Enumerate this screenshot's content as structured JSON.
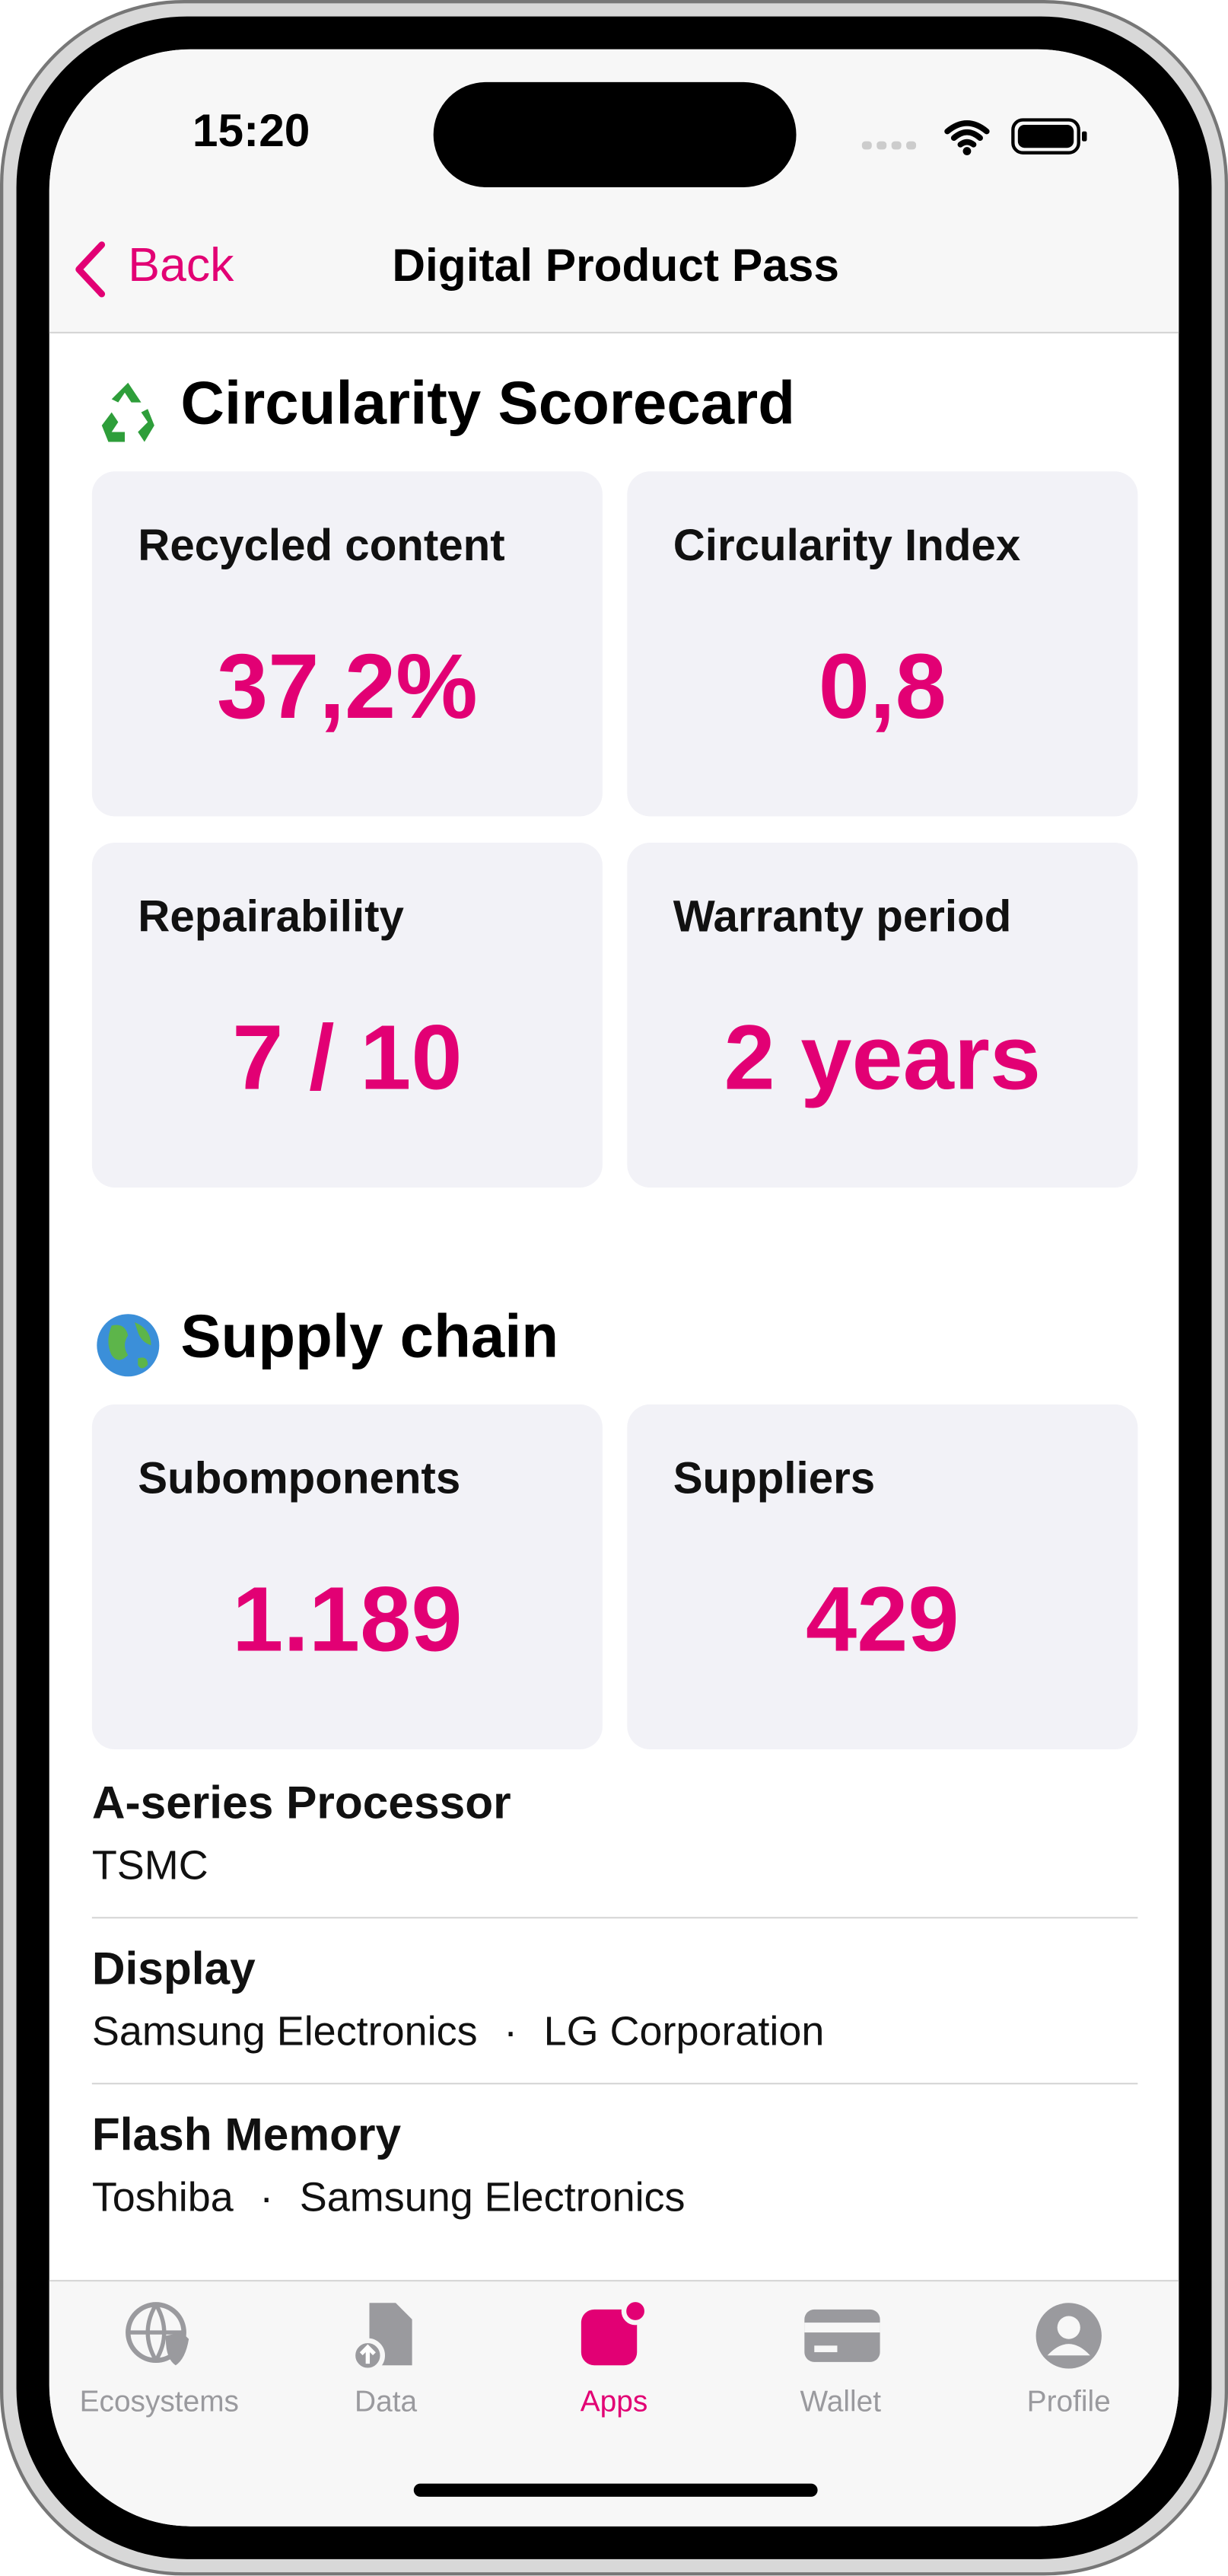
{
  "status_bar": {
    "time": "15:20"
  },
  "nav": {
    "back": "Back",
    "title": "Digital Product Pass"
  },
  "sections": [
    {
      "title": "Circularity Scorecard",
      "cards": [
        {
          "label": "Recycled content",
          "value": "37,2%"
        },
        {
          "label": "Circularity Index",
          "value": "0,8"
        },
        {
          "label": "Repairability",
          "value": "7 / 10"
        },
        {
          "label": "Warranty period",
          "value": "2 years"
        }
      ]
    },
    {
      "title": "Supply chain",
      "cards": [
        {
          "label": "Subomponents",
          "value": "1.189"
        },
        {
          "label": "Suppliers",
          "value": "429"
        }
      ]
    }
  ],
  "components": [
    {
      "name": "A-series Processor",
      "suppliers": [
        "TSMC"
      ]
    },
    {
      "name": "Display",
      "suppliers": [
        "Samsung Electronics",
        "LG Corporation"
      ]
    },
    {
      "name": "Flash Memory",
      "suppliers": [
        "Toshiba",
        "Samsung Electronics"
      ]
    }
  ],
  "tab_bar": [
    {
      "label": "Ecosystems"
    },
    {
      "label": "Data"
    },
    {
      "label": "Apps",
      "active": true
    },
    {
      "label": "Wallet"
    },
    {
      "label": "Profile"
    }
  ]
}
